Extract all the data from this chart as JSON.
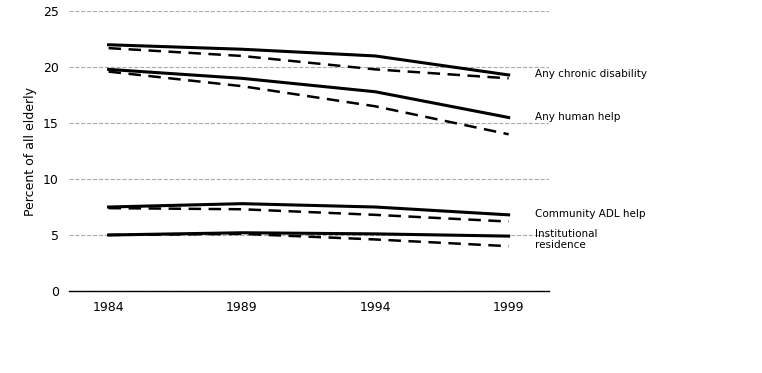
{
  "years": [
    1984,
    1989,
    1994,
    1999
  ],
  "actual": {
    "any_chronic": [
      22.0,
      21.6,
      21.0,
      19.3
    ],
    "any_human": [
      19.8,
      19.0,
      17.8,
      15.5
    ],
    "community_adl": [
      7.5,
      7.8,
      7.5,
      6.8
    ],
    "institutional": [
      5.0,
      5.2,
      5.1,
      4.9
    ]
  },
  "adjusted": {
    "any_chronic": [
      21.7,
      21.0,
      19.8,
      19.0
    ],
    "any_human": [
      19.6,
      18.3,
      16.5,
      14.0
    ],
    "community_adl": [
      7.4,
      7.3,
      6.8,
      6.2
    ],
    "institutional": [
      5.0,
      5.1,
      4.6,
      4.0
    ]
  },
  "labels": {
    "any_chronic": "Any chronic disability",
    "any_human": "Any human help",
    "community_adl": "Community ADL help",
    "institutional": "Institutional\nresidence"
  },
  "ylabel": "Percent of all elderly",
  "ylim": [
    0,
    25
  ],
  "yticks": [
    0,
    5,
    10,
    15,
    20,
    25
  ],
  "xticks": [
    1984,
    1989,
    1994,
    1999
  ],
  "line_color": "#000000",
  "grid_color": "#aaaaaa",
  "figsize": [
    7.62,
    3.73
  ],
  "dpi": 100
}
